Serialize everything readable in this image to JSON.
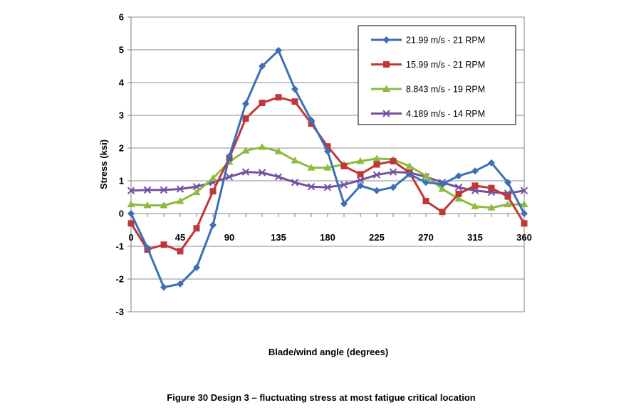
{
  "caption": "Figure 30  Design 3 – fluctuating stress at most fatigue critical location",
  "chart_data": {
    "type": "line",
    "xlabel": "Blade/wind angle (degrees)",
    "ylabel": "Stress (ksi)",
    "xlim": [
      0,
      360
    ],
    "ylim": [
      -3,
      6
    ],
    "x_ticks": [
      0,
      45,
      90,
      135,
      180,
      225,
      270,
      315,
      360
    ],
    "x_tick_labels": [
      "0",
      "45",
      "90",
      "135",
      "180",
      "225",
      "270",
      "315",
      "360"
    ],
    "y_ticks": [
      -3,
      -2,
      -1,
      0,
      1,
      2,
      3,
      4,
      5,
      6
    ],
    "y_tick_labels": [
      "-3",
      "-2",
      "-1",
      "0",
      "1",
      "2",
      "3",
      "4",
      "5",
      "6"
    ],
    "grid": "horizontal",
    "legend_position": "top-right",
    "x": [
      0,
      15,
      30,
      45,
      60,
      75,
      90,
      105,
      120,
      135,
      150,
      165,
      180,
      195,
      210,
      225,
      240,
      255,
      270,
      285,
      300,
      315,
      330,
      345,
      360
    ],
    "series": [
      {
        "name": "21.99 m/s - 21 RPM",
        "color": "#3c6fb6",
        "marker": "diamond",
        "values": [
          0,
          -1.05,
          -2.25,
          -2.15,
          -1.65,
          -0.35,
          1.75,
          3.35,
          4.5,
          4.98,
          3.8,
          2.85,
          1.9,
          0.3,
          0.85,
          0.7,
          0.8,
          1.2,
          0.95,
          0.9,
          1.15,
          1.3,
          1.55,
          0.95,
          0
        ]
      },
      {
        "name": "15.99 m/s - 21 RPM",
        "color": "#c0373a",
        "marker": "square",
        "values": [
          -0.3,
          -1.1,
          -0.95,
          -1.15,
          -0.45,
          0.68,
          1.7,
          2.9,
          3.38,
          3.55,
          3.42,
          2.75,
          2.05,
          1.45,
          1.2,
          1.5,
          1.6,
          1.25,
          0.38,
          0.05,
          0.6,
          0.85,
          0.78,
          0.52,
          -0.3
        ]
      },
      {
        "name": "8.843 m/s - 19 RPM",
        "color": "#8cbb3e",
        "marker": "triangle",
        "values": [
          0.28,
          0.25,
          0.25,
          0.38,
          0.65,
          1.08,
          1.58,
          1.92,
          2.03,
          1.9,
          1.62,
          1.4,
          1.4,
          1.5,
          1.6,
          1.68,
          1.65,
          1.45,
          1.15,
          0.75,
          0.45,
          0.22,
          0.18,
          0.28,
          0.28
        ]
      },
      {
        "name": "4.189 m/s - 14 RPM",
        "color": "#7350a0",
        "marker": "x",
        "values": [
          0.7,
          0.72,
          0.72,
          0.75,
          0.82,
          0.95,
          1.12,
          1.27,
          1.25,
          1.12,
          0.95,
          0.82,
          0.8,
          0.88,
          1.02,
          1.18,
          1.27,
          1.25,
          1.12,
          0.95,
          0.8,
          0.7,
          0.65,
          0.62,
          0.7
        ]
      }
    ]
  }
}
